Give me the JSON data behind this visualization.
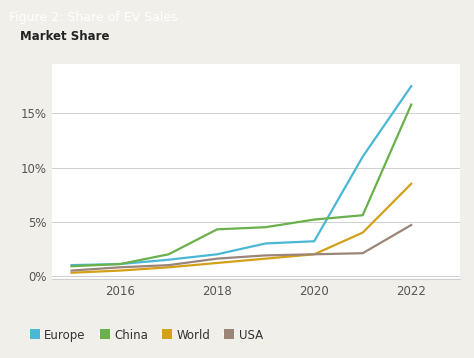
{
  "title": "Figure 2: Share of EV Sales",
  "title_bg_color": "#2e5e27",
  "title_text_color": "#ffffff",
  "ylabel": "Market Share",
  "bg_color": "#f0efea",
  "plot_bg_color": "#ffffff",
  "years": [
    2015,
    2016,
    2017,
    2018,
    2019,
    2020,
    2021,
    2022
  ],
  "europe": [
    1.0,
    1.1,
    1.5,
    2.0,
    3.0,
    3.2,
    11.0,
    17.5
  ],
  "china": [
    0.9,
    1.1,
    2.0,
    4.3,
    4.5,
    5.2,
    5.6,
    15.8
  ],
  "world": [
    0.3,
    0.5,
    0.8,
    1.2,
    1.6,
    2.0,
    4.0,
    8.5
  ],
  "usa": [
    0.5,
    0.8,
    1.0,
    1.6,
    1.9,
    2.0,
    2.1,
    4.7
  ],
  "europe_color": "#4ab8d4",
  "china_color": "#6ab04c",
  "world_color": "#d4a017",
  "usa_color": "#9b8579",
  "yticks": [
    0,
    5,
    10,
    15
  ],
  "ylim": [
    -0.3,
    19.5
  ],
  "xlim": [
    2014.6,
    2023.0
  ],
  "xticks": [
    2016,
    2018,
    2020,
    2022
  ],
  "grid_color": "#d0d0d0",
  "line_width": 1.6,
  "legend_labels": [
    "Europe",
    "China",
    "World",
    "USA"
  ]
}
